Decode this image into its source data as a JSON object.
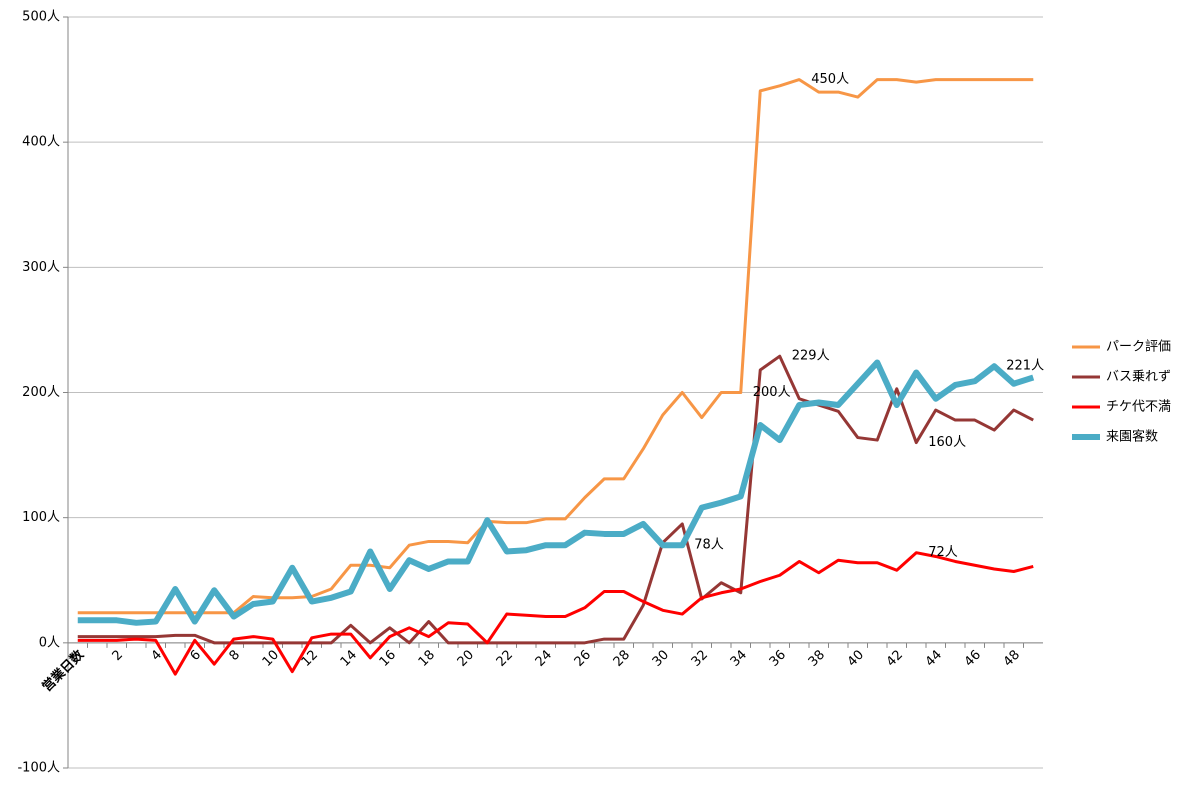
{
  "chart_data": {
    "type": "line",
    "categories": [
      "営業日数",
      null,
      "2",
      null,
      "4",
      null,
      "6",
      null,
      "8",
      null,
      "10",
      null,
      "12",
      null,
      "14",
      null,
      "16",
      null,
      "18",
      null,
      "20",
      null,
      "22",
      null,
      "24",
      null,
      "26",
      null,
      "28",
      null,
      "30",
      null,
      "32",
      null,
      "34",
      null,
      "36",
      null,
      "38",
      null,
      "40",
      null,
      "42",
      null,
      "44",
      null,
      "46",
      null,
      "48",
      null
    ],
    "ylim": [
      -100,
      500
    ],
    "yticks": [
      {
        "value": -100,
        "label": "-100人"
      },
      {
        "value": 0,
        "label": "0人"
      },
      {
        "value": 100,
        "label": "100人"
      },
      {
        "value": 200,
        "label": "200人"
      },
      {
        "value": 300,
        "label": "300人"
      },
      {
        "value": 400,
        "label": "400人"
      },
      {
        "value": 500,
        "label": "500人"
      }
    ],
    "grid": true,
    "legend": "right",
    "series": [
      {
        "name": "パーク評価",
        "color": "#f79646",
        "width": 3,
        "values": [
          24,
          24,
          24,
          24,
          24,
          24,
          24,
          24,
          24,
          37,
          36,
          36,
          37,
          43,
          62,
          62,
          60,
          78,
          81,
          81,
          80,
          97,
          96,
          96,
          99,
          99,
          116,
          131,
          131,
          155,
          182,
          200,
          180,
          200,
          200,
          441,
          445,
          450,
          440,
          440,
          436,
          450,
          450,
          448,
          450,
          450,
          450,
          450,
          450,
          450
        ],
        "value_labels": [
          null,
          null,
          null,
          null,
          null,
          null,
          null,
          null,
          null,
          null,
          null,
          null,
          null,
          null,
          null,
          null,
          null,
          null,
          null,
          null,
          null,
          null,
          null,
          null,
          null,
          null,
          null,
          null,
          null,
          null,
          null,
          null,
          null,
          null,
          "200人",
          null,
          null,
          "450人",
          null,
          null,
          null,
          null,
          null,
          null,
          null,
          null,
          null,
          null,
          null,
          null
        ]
      },
      {
        "name": "バス乗れず",
        "color": "#953735",
        "width": 3,
        "values": [
          5,
          5,
          5,
          5,
          5,
          6,
          6,
          0,
          0,
          0,
          0,
          0,
          0,
          0,
          14,
          0,
          12,
          0,
          17,
          0,
          0,
          0,
          0,
          0,
          0,
          0,
          0,
          3,
          3,
          30,
          80,
          95,
          35,
          48,
          40,
          218,
          229,
          195,
          190,
          185,
          164,
          162,
          203,
          160,
          186,
          178,
          178,
          170,
          186,
          178
        ],
        "value_labels": [
          null,
          null,
          null,
          null,
          null,
          null,
          null,
          null,
          null,
          null,
          null,
          null,
          null,
          null,
          null,
          null,
          null,
          null,
          null,
          null,
          null,
          null,
          null,
          null,
          null,
          null,
          null,
          null,
          null,
          null,
          null,
          null,
          null,
          null,
          null,
          null,
          "229人",
          null,
          null,
          null,
          null,
          null,
          null,
          "160人",
          null,
          null,
          null,
          null,
          null,
          null
        ]
      },
      {
        "name": "チケ代不満",
        "color": "#ff0000",
        "width": 3,
        "values": [
          2,
          2,
          2,
          3,
          2,
          -25,
          2,
          -17,
          3,
          5,
          3,
          -23,
          4,
          7,
          7,
          -12,
          5,
          12,
          5,
          16,
          15,
          0,
          23,
          22,
          21,
          21,
          28,
          41,
          41,
          33,
          26,
          23,
          36,
          40,
          43,
          49,
          54,
          65,
          56,
          66,
          64,
          64,
          58,
          72,
          69,
          65,
          62,
          59,
          57,
          61
        ],
        "value_labels": [
          null,
          null,
          null,
          null,
          null,
          null,
          null,
          null,
          null,
          null,
          null,
          null,
          null,
          null,
          null,
          null,
          null,
          null,
          null,
          null,
          null,
          null,
          null,
          null,
          null,
          null,
          null,
          null,
          null,
          null,
          null,
          null,
          null,
          null,
          null,
          null,
          null,
          null,
          null,
          null,
          null,
          null,
          null,
          "72人",
          null,
          null,
          null,
          null,
          null,
          null
        ]
      },
      {
        "name": "来園客数",
        "color": "#4bacc6",
        "width": 6,
        "values": [
          18,
          18,
          18,
          16,
          17,
          43,
          17,
          42,
          21,
          31,
          33,
          60,
          33,
          36,
          41,
          73,
          43,
          66,
          59,
          65,
          65,
          98,
          73,
          74,
          78,
          78,
          88,
          87,
          87,
          95,
          78,
          78,
          108,
          112,
          117,
          174,
          162,
          190,
          192,
          190,
          207,
          224,
          190,
          216,
          195,
          206,
          209,
          221,
          207,
          212
        ],
        "value_labels": [
          null,
          null,
          null,
          null,
          null,
          null,
          null,
          null,
          null,
          null,
          null,
          null,
          null,
          null,
          null,
          null,
          null,
          null,
          null,
          null,
          null,
          null,
          null,
          null,
          null,
          null,
          null,
          null,
          null,
          null,
          null,
          "78人",
          null,
          null,
          null,
          null,
          null,
          null,
          null,
          null,
          null,
          null,
          null,
          null,
          null,
          null,
          null,
          "221人",
          null,
          null
        ]
      }
    ]
  }
}
